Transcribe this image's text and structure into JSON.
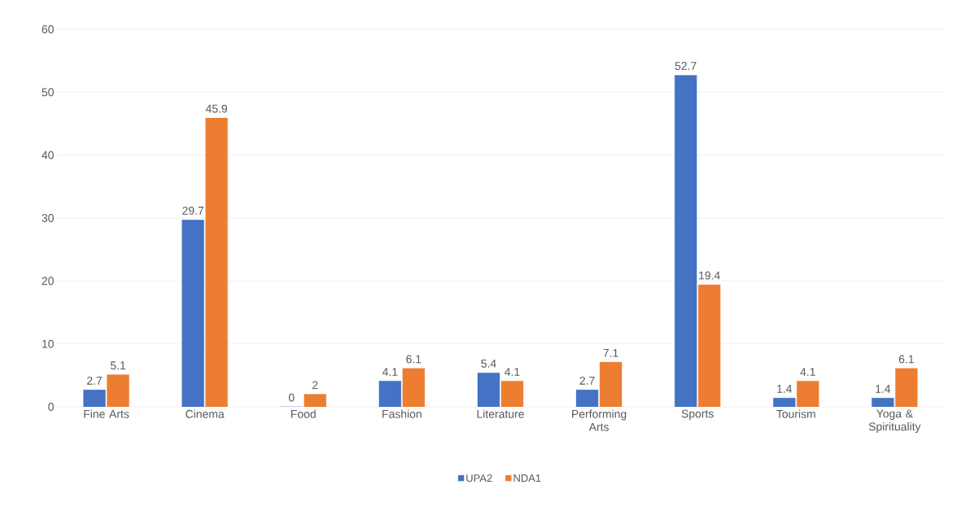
{
  "chart_data": {
    "type": "bar",
    "categories": [
      "Fine Arts",
      "Cinema",
      "Food",
      "Fashion",
      "Literature",
      "Performing Arts",
      "Sports",
      "Tourism",
      "Yoga & Spirituality"
    ],
    "series": [
      {
        "name": "UPA2",
        "color": "#4472c4",
        "values": [
          2.7,
          29.7,
          0,
          4.1,
          5.4,
          2.7,
          52.7,
          1.4,
          1.4
        ]
      },
      {
        "name": "NDA1",
        "color": "#ed7d31",
        "values": [
          5.1,
          45.9,
          2,
          6.1,
          4.1,
          7.1,
          19.4,
          4.1,
          6.1
        ]
      }
    ],
    "ylim": [
      0,
      60
    ],
    "yticks": [
      0,
      10,
      20,
      30,
      40,
      50,
      60
    ],
    "grid": "y",
    "legend": "bottom",
    "data_labels": true
  }
}
